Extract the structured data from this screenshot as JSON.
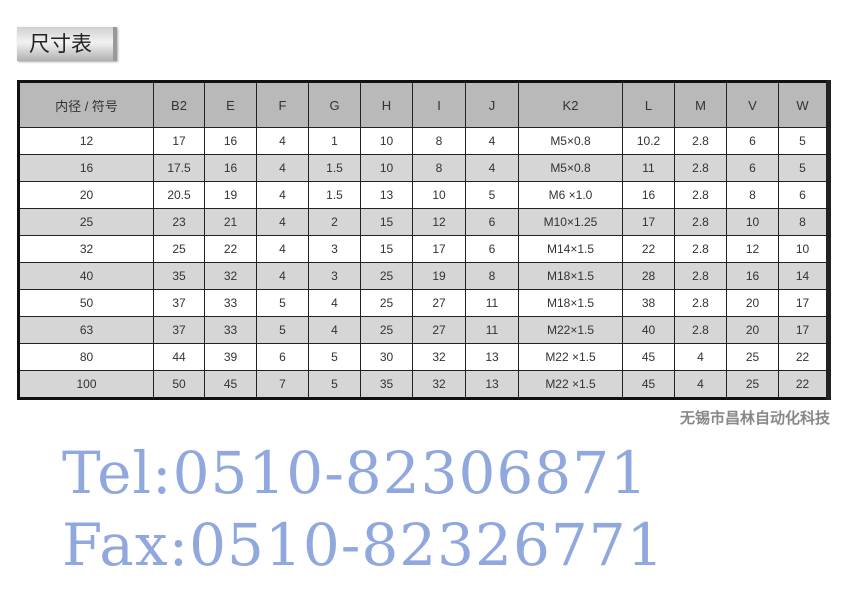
{
  "title": "尺寸表",
  "headers": [
    "内径 / 符号",
    "B2",
    "E",
    "F",
    "G",
    "H",
    "I",
    "J",
    "K2",
    "L",
    "M",
    "V",
    "W"
  ],
  "rows": [
    [
      "12",
      "17",
      "16",
      "4",
      "1",
      "10",
      "8",
      "4",
      "M5×0.8",
      "10.2",
      "2.8",
      "6",
      "5"
    ],
    [
      "16",
      "17.5",
      "16",
      "4",
      "1.5",
      "10",
      "8",
      "4",
      "M5×0.8",
      "11",
      "2.8",
      "6",
      "5"
    ],
    [
      "20",
      "20.5",
      "19",
      "4",
      "1.5",
      "13",
      "10",
      "5",
      "M6 ×1.0",
      "16",
      "2.8",
      "8",
      "6"
    ],
    [
      "25",
      "23",
      "21",
      "4",
      "2",
      "15",
      "12",
      "6",
      "M10×1.25",
      "17",
      "2.8",
      "10",
      "8"
    ],
    [
      "32",
      "25",
      "22",
      "4",
      "3",
      "15",
      "17",
      "6",
      "M14×1.5",
      "22",
      "2.8",
      "12",
      "10"
    ],
    [
      "40",
      "35",
      "32",
      "4",
      "3",
      "25",
      "19",
      "8",
      "M18×1.5",
      "28",
      "2.8",
      "16",
      "14"
    ],
    [
      "50",
      "37",
      "33",
      "5",
      "4",
      "25",
      "27",
      "11",
      "M18×1.5",
      "38",
      "2.8",
      "20",
      "17"
    ],
    [
      "63",
      "37",
      "33",
      "5",
      "4",
      "25",
      "27",
      "11",
      "M22×1.5",
      "40",
      "2.8",
      "20",
      "17"
    ],
    [
      "80",
      "44",
      "39",
      "6",
      "5",
      "30",
      "32",
      "13",
      "M22 ×1.5",
      "45",
      "4",
      "25",
      "22"
    ],
    [
      "100",
      "50",
      "45",
      "7",
      "5",
      "35",
      "32",
      "13",
      "M22 ×1.5",
      "45",
      "4",
      "25",
      "22"
    ]
  ],
  "watermark": {
    "tel": "Tel:0510-82306871",
    "fax": "Fax:0510-82326771"
  },
  "footer": "无锡市昌林自动化科技"
}
